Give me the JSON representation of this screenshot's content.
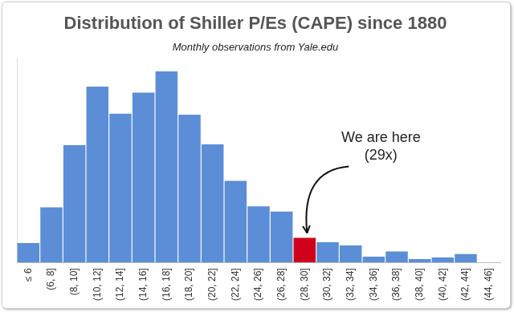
{
  "chart_data": {
    "type": "bar",
    "title": "Distribution of Shiller P/Es (CAPE) since 1880",
    "subtitle": "Monthly observations from Yale.edu",
    "categories": [
      "≤ 6",
      "(6, 8]",
      "(8, 10]",
      "(10, 12]",
      "(12, 14]",
      "(14, 16]",
      "(16, 18]",
      "(18, 20]",
      "(20, 22]",
      "(22, 24]",
      "(24, 26]",
      "(26, 28]",
      "(28, 30]",
      "(30, 32]",
      "(32, 34]",
      "(34, 36]",
      "(36, 38]",
      "(38, 40]",
      "(40, 42]",
      "(42, 44]",
      "(44, 46]"
    ],
    "values": [
      23,
      65,
      138,
      207,
      175,
      200,
      225,
      174,
      139,
      96,
      66,
      60,
      29,
      24,
      20,
      7,
      13,
      4,
      6,
      10,
      0
    ],
    "colors": [
      "#5b8ed6",
      "#5b8ed6",
      "#5b8ed6",
      "#5b8ed6",
      "#5b8ed6",
      "#5b8ed6",
      "#5b8ed6",
      "#5b8ed6",
      "#5b8ed6",
      "#5b8ed6",
      "#5b8ed6",
      "#5b8ed6",
      "#d0021b",
      "#5b8ed6",
      "#5b8ed6",
      "#5b8ed6",
      "#5b8ed6",
      "#5b8ed6",
      "#5b8ed6",
      "#5b8ed6",
      "#5b8ed6"
    ],
    "ylim": [
      0,
      240
    ],
    "grid": false,
    "tick_labels": "x",
    "annotation": {
      "text": [
        "We are here",
        "(29x)"
      ],
      "category": "(28, 30]"
    }
  }
}
